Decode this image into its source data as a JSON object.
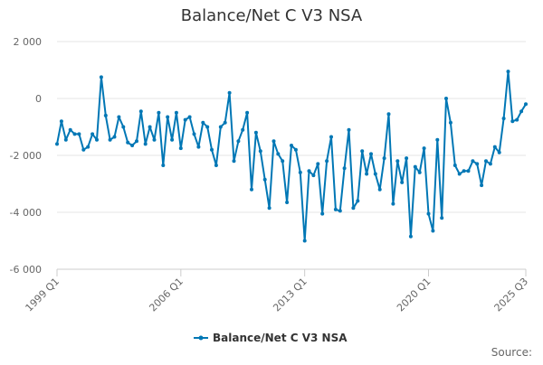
{
  "chart_data": {
    "type": "line",
    "title": "Balance/Net C V3 NSA",
    "xlabel": "",
    "ylabel": "",
    "x_tick_labels": [
      "1999 Q1",
      "2006 Q1",
      "2013 Q1",
      "2020 Q1",
      "2025 Q3"
    ],
    "y_tick_labels": [
      "2 000",
      "0",
      "-2 000",
      "-4 000",
      "-6 000"
    ],
    "ylim": [
      -6000,
      2000
    ],
    "y_ticks": [
      2000,
      0,
      -2000,
      -4000,
      -6000
    ],
    "grid": true,
    "legend_position": "bottom",
    "color": "#0077b5",
    "credits": "Source:",
    "x_first": "1999 Q1",
    "x_last": "2025 Q3",
    "series": [
      {
        "name": "Balance/Net C V3 NSA",
        "values": [
          -1600,
          -800,
          -1450,
          -1100,
          -1250,
          -1250,
          -1800,
          -1700,
          -1250,
          -1450,
          750,
          -600,
          -1450,
          -1350,
          -650,
          -1000,
          -1550,
          -1650,
          -1500,
          -450,
          -1600,
          -1000,
          -1450,
          -500,
          -2350,
          -650,
          -1450,
          -500,
          -1750,
          -750,
          -650,
          -1250,
          -1700,
          -850,
          -1000,
          -1800,
          -2350,
          -1000,
          -850,
          200,
          -2200,
          -1500,
          -1100,
          -500,
          -3200,
          -1200,
          -1850,
          -2850,
          -3850,
          -1500,
          -1950,
          -2200,
          -3650,
          -1650,
          -1800,
          -2600,
          -5000,
          -2550,
          -2700,
          -2300,
          -4050,
          -2200,
          -1350,
          -3900,
          -3950,
          -2450,
          -1100,
          -3850,
          -3600,
          -1850,
          -2650,
          -1950,
          -2650,
          -3200,
          -2100,
          -550,
          -3700,
          -2200,
          -2950,
          -2100,
          -4850,
          -2400,
          -2600,
          -1750,
          -4050,
          -4650,
          -1450,
          -4200,
          0,
          -850,
          -2350,
          -2650,
          -2550,
          -2550,
          -2200,
          -2300,
          -3050,
          -2200,
          -2300,
          -1700,
          -1900,
          -700,
          950,
          -800,
          -750,
          -450,
          -200
        ]
      }
    ]
  }
}
